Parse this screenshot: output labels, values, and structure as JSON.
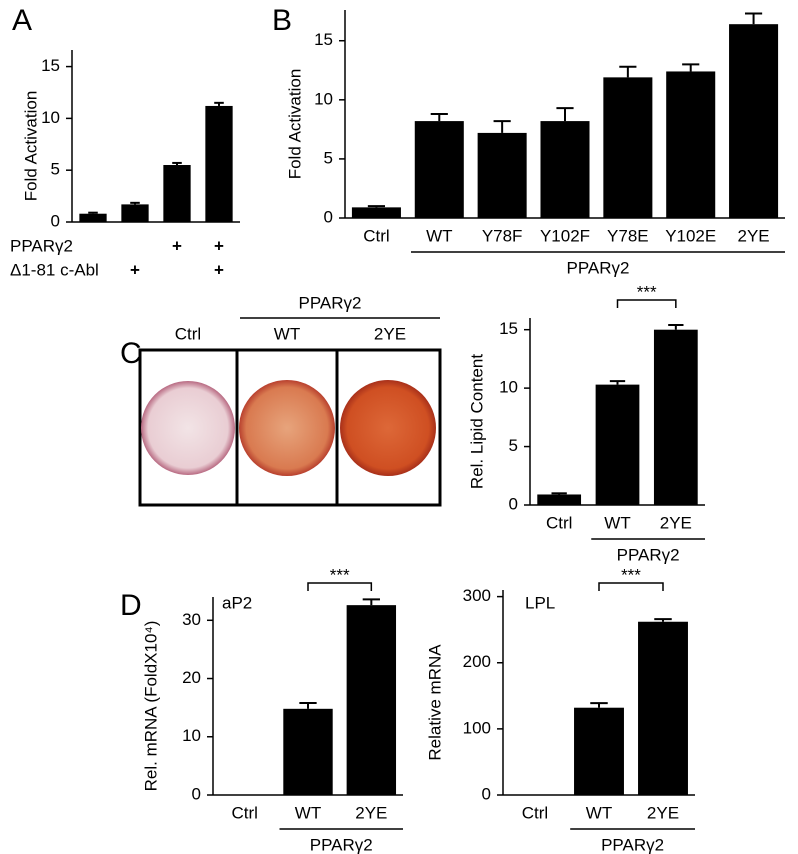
{
  "chart_data": [
    {
      "type": "bar",
      "panel": "A",
      "ylabel": "Fold Activation",
      "values": [
        0.8,
        1.7,
        5.5,
        11.2
      ],
      "errors": [
        0.1,
        0.15,
        0.2,
        0.3
      ],
      "color": "#000000",
      "ylim": [
        0,
        16.6
      ],
      "yticks": [
        0,
        5,
        10,
        15
      ],
      "rows": [
        {
          "label": "PPARγ2",
          "marks": [
            null,
            null,
            "+",
            "+"
          ]
        },
        {
          "label": "Δ1-81 c-Abl",
          "marks": [
            null,
            "+",
            null,
            "+"
          ]
        }
      ]
    },
    {
      "type": "bar",
      "panel": "B",
      "ylabel": "Fold Activation",
      "categories": [
        "Ctrl",
        "WT",
        "Y78F",
        "Y102F",
        "Y78E",
        "Y102E",
        "2YE"
      ],
      "values": [
        0.9,
        8.2,
        7.2,
        8.2,
        11.9,
        12.4,
        16.4
      ],
      "errors": [
        0.1,
        0.6,
        1.0,
        1.1,
        0.9,
        0.6,
        0.9
      ],
      "color": "#000000",
      "ylim": [
        0,
        17.6
      ],
      "yticks": [
        0,
        5,
        10,
        15
      ],
      "group_label": "PPARγ2"
    },
    {
      "type": "bar",
      "panel": "C",
      "ylabel": "Rel. Lipid Content",
      "image_labels": {
        "ctrl": "Ctrl",
        "group": "PPARγ2",
        "wt": "WT",
        "mut": "2YE"
      },
      "categories": [
        "Ctrl",
        "WT",
        "2YE"
      ],
      "values": [
        0.9,
        10.3,
        15.0
      ],
      "errors": [
        0.1,
        0.3,
        0.4
      ],
      "color": "#000000",
      "ylim": [
        0,
        16
      ],
      "yticks": [
        0,
        5,
        10,
        15
      ],
      "group_label": "PPARγ2",
      "significance": "***"
    },
    {
      "type": "bar",
      "panel": "D",
      "annotation": "aP2",
      "ylabel": "Rel. mRNA (FoldX10⁴)",
      "categories": [
        "Ctrl",
        "WT",
        "2YE"
      ],
      "values": [
        0,
        14.8,
        32.6
      ],
      "errors": [
        0,
        1.0,
        1.0
      ],
      "color": "#000000",
      "ylim": [
        0,
        34
      ],
      "yticks": [
        0,
        10,
        20,
        30
      ],
      "group_label": "PPARγ2",
      "significance": "***"
    },
    {
      "type": "bar",
      "annotation": "LPL",
      "ylabel": "Relative mRNA",
      "categories": [
        "Ctrl",
        "WT",
        "2YE"
      ],
      "values": [
        0.5,
        132,
        262
      ],
      "errors": [
        0,
        7,
        4
      ],
      "color": "#000000",
      "ylim": [
        0,
        310
      ],
      "yticks": [
        0,
        100,
        200,
        300
      ],
      "group_label": "PPARγ2",
      "significance": "***"
    }
  ]
}
